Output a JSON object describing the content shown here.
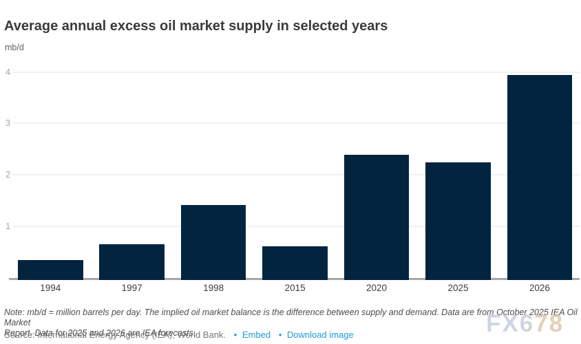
{
  "header": {
    "title": "Average annual excess oil market supply in selected years",
    "unit_label": "mb/d"
  },
  "chart_data": {
    "type": "bar",
    "categories": [
      "1994",
      "1997",
      "1998",
      "2015",
      "2020",
      "2025",
      "2026"
    ],
    "values": [
      0.36,
      0.67,
      1.43,
      0.63,
      2.4,
      2.26,
      3.96
    ],
    "title": "Average annual excess oil market supply in selected years",
    "xlabel": "",
    "ylabel": "mb/d",
    "ylim": [
      0,
      4.2
    ],
    "yticks": [
      1,
      2,
      3,
      4
    ],
    "grid": true,
    "legend": "none",
    "bar_color": "#02243f"
  },
  "note": {
    "line1": "Note: mb/d = million barrels per day. The implied oil market balance is the difference between supply and demand. Data are from October 2025 IEA Oil Market",
    "line2": "Report. Data for 2025 and 2026 are IEA forecasts."
  },
  "source": {
    "prefix": "Source: International Energy Agency (IEA); World Bank.",
    "bullet": "•",
    "links": [
      {
        "label": "Embed"
      },
      {
        "label": "Download image"
      }
    ]
  },
  "watermark": "FX678",
  "colors": {
    "bar": "#02243f",
    "link": "#1d9bd8",
    "gridline": "#f1f1f1",
    "baseline": "#a6a6a6",
    "title_text": "#3a3a3a"
  }
}
